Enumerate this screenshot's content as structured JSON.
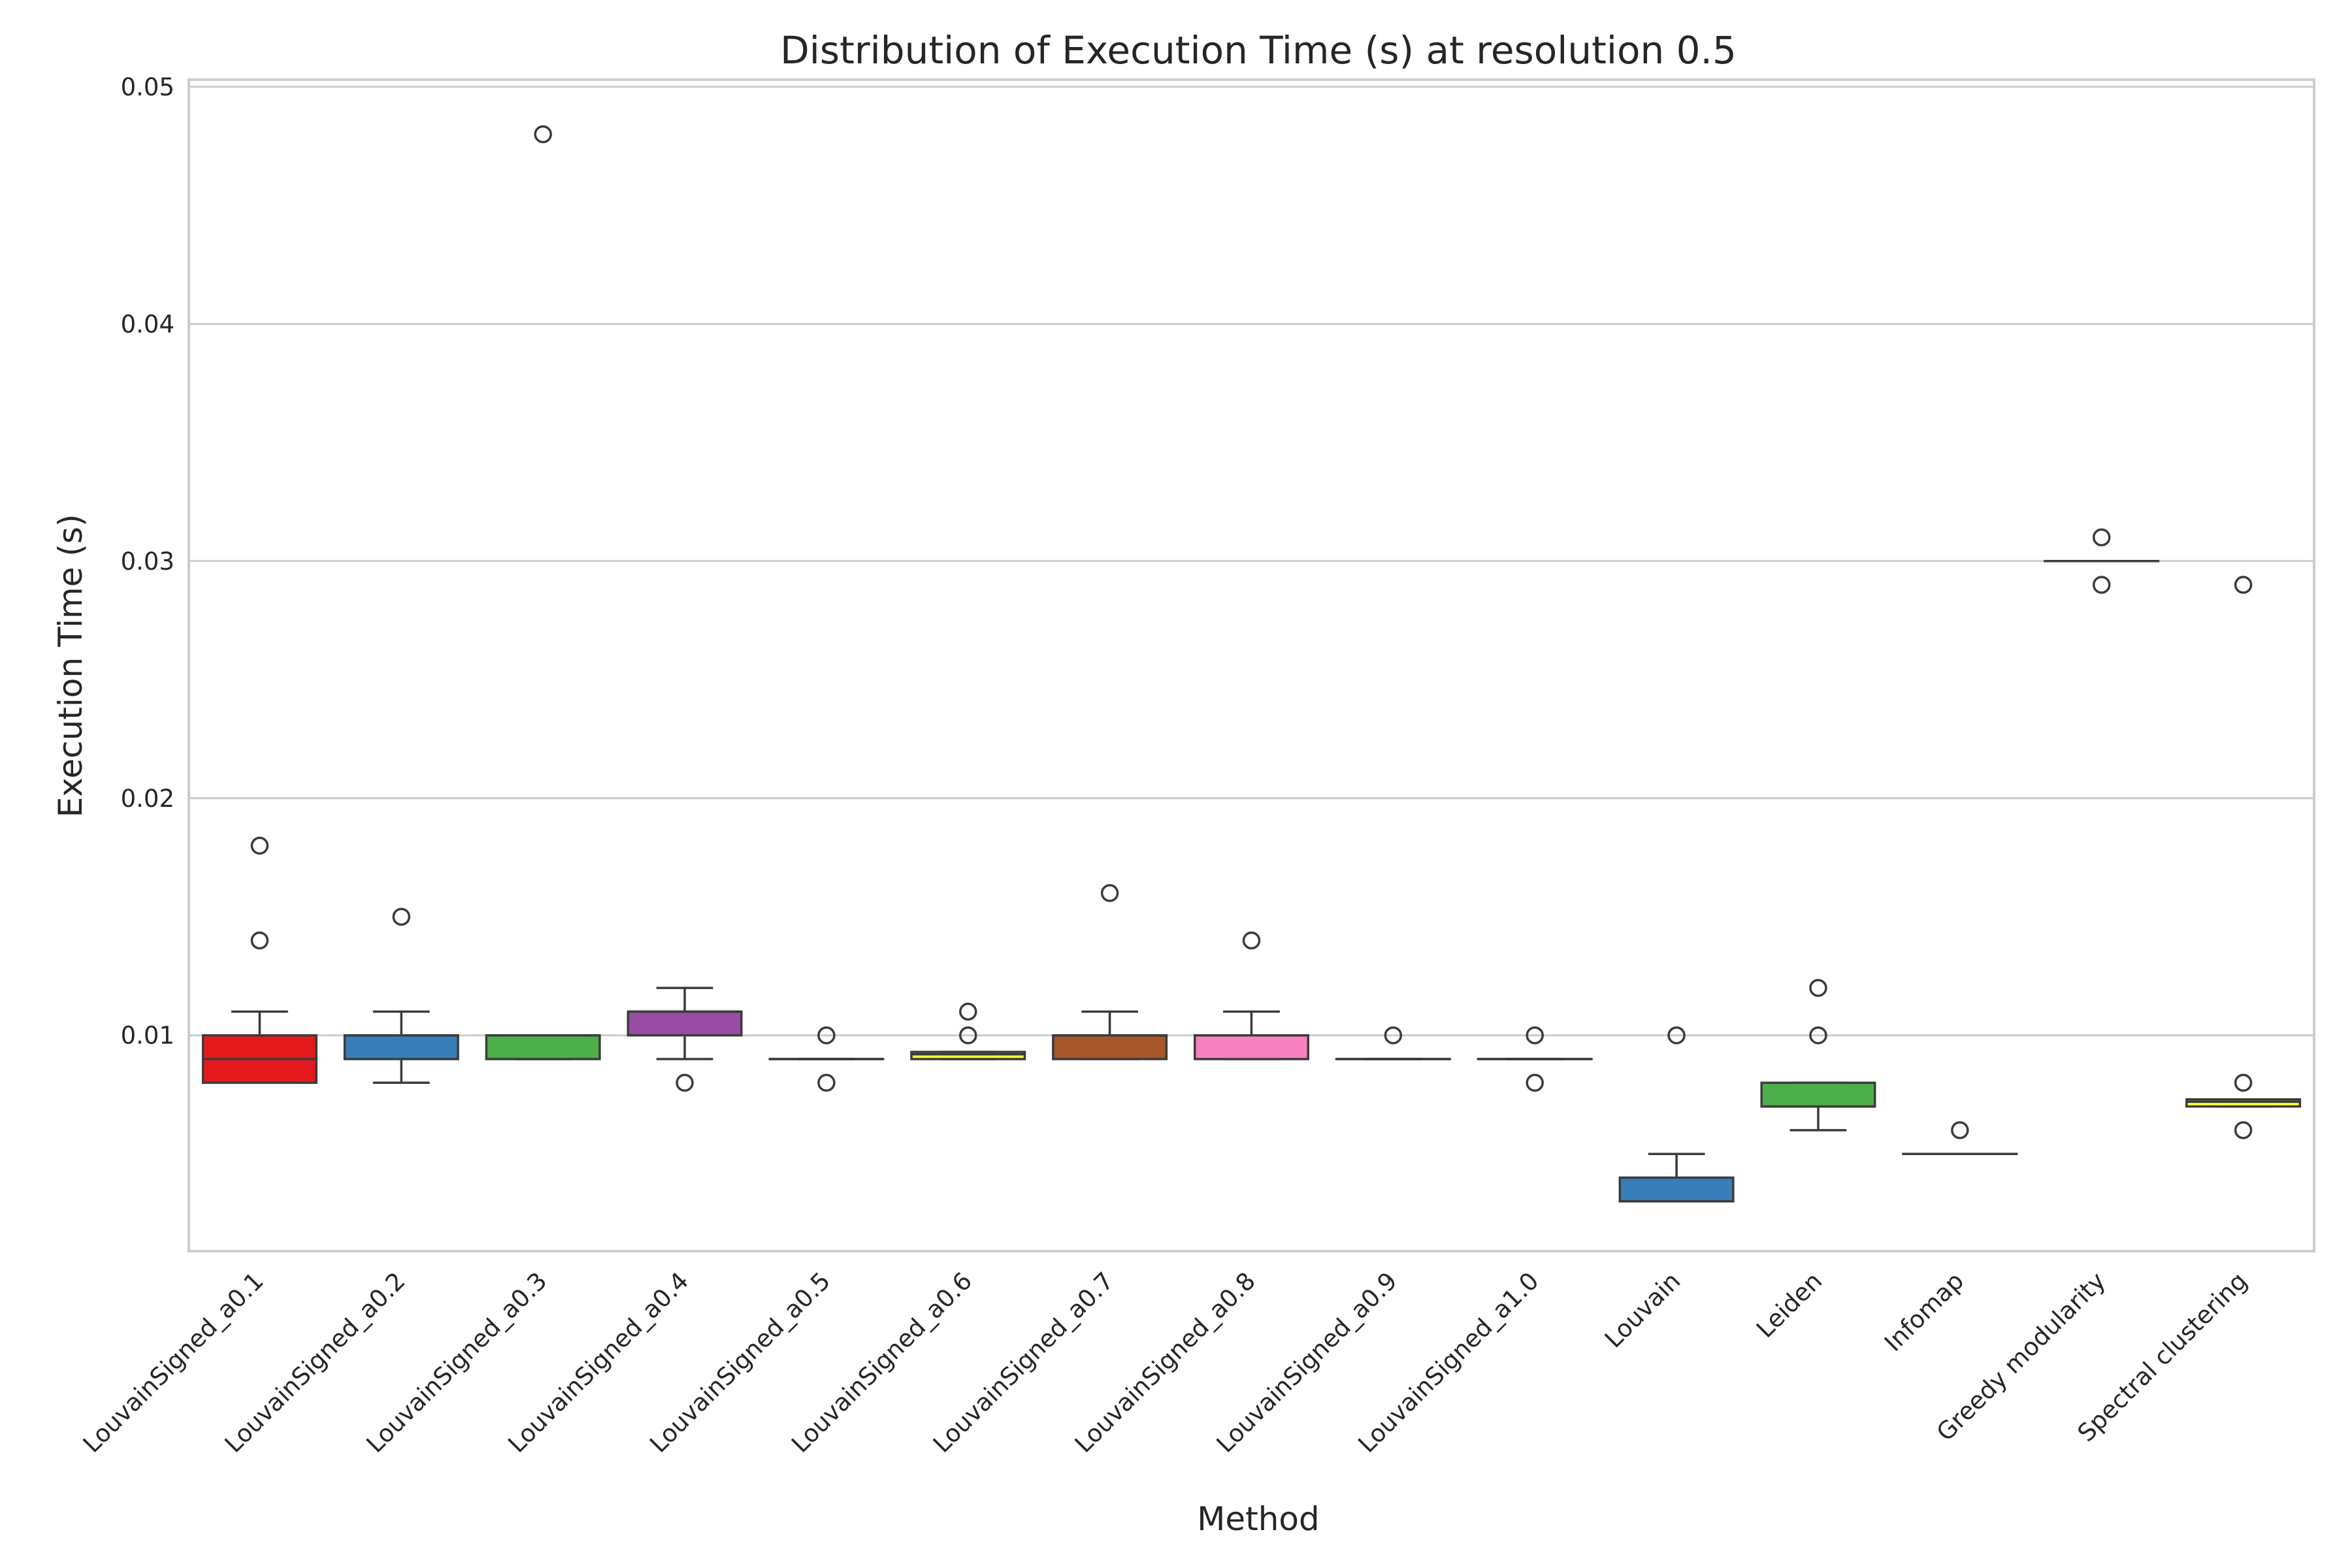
{
  "chart_data": {
    "type": "box",
    "title": "Distribution of Execution Time (s) at resolution 0.5",
    "xlabel": "Method",
    "ylabel": "Execution Time (s)",
    "ylim": [
      0.0009,
      0.0503
    ],
    "yticks": [
      0.01,
      0.02,
      0.03,
      0.04,
      0.05
    ],
    "grid": "horizontal",
    "categories": [
      "LouvainSigned_a0.1",
      "LouvainSigned_a0.2",
      "LouvainSigned_a0.3",
      "LouvainSigned_a0.4",
      "LouvainSigned_a0.5",
      "LouvainSigned_a0.6",
      "LouvainSigned_a0.7",
      "LouvainSigned_a0.8",
      "LouvainSigned_a0.9",
      "LouvainSigned_a1.0",
      "Louvain",
      "Leiden",
      "Infomap",
      "Greedy modularity",
      "Spectral clustering"
    ],
    "boxes": [
      {
        "color": "#e41a1c",
        "whislo": 0.008,
        "q1": 0.008,
        "med": 0.009,
        "q3": 0.01,
        "whishi": 0.011,
        "fliers": [
          0.014,
          0.018
        ]
      },
      {
        "color": "#377eb8",
        "whislo": 0.008,
        "q1": 0.009,
        "med": 0.01,
        "q3": 0.01,
        "whishi": 0.011,
        "fliers": [
          0.015
        ]
      },
      {
        "color": "#4daf4a",
        "whislo": 0.009,
        "q1": 0.009,
        "med": 0.01,
        "q3": 0.01,
        "whishi": 0.01,
        "fliers": [
          0.048
        ]
      },
      {
        "color": "#984ea3",
        "whislo": 0.009,
        "q1": 0.01,
        "med": 0.011,
        "q3": 0.011,
        "whishi": 0.012,
        "fliers": [
          0.008
        ]
      },
      {
        "color": "#ff7f00",
        "whislo": 0.009,
        "q1": 0.009,
        "med": 0.009,
        "q3": 0.009,
        "whishi": 0.009,
        "fliers": [
          0.008,
          0.01
        ]
      },
      {
        "color": "#ffff33",
        "whislo": 0.009,
        "q1": 0.009,
        "med": 0.0092,
        "q3": 0.0093,
        "whishi": 0.0093,
        "fliers": [
          0.01,
          0.011
        ]
      },
      {
        "color": "#a65628",
        "whislo": 0.009,
        "q1": 0.009,
        "med": 0.01,
        "q3": 0.01,
        "whishi": 0.011,
        "fliers": [
          0.016
        ]
      },
      {
        "color": "#f781bf",
        "whislo": 0.009,
        "q1": 0.009,
        "med": 0.01,
        "q3": 0.01,
        "whishi": 0.011,
        "fliers": [
          0.014
        ]
      },
      {
        "color": "#999999",
        "whislo": 0.009,
        "q1": 0.009,
        "med": 0.009,
        "q3": 0.009,
        "whishi": 0.009,
        "fliers": [
          0.01
        ]
      },
      {
        "color": "#e41a1c",
        "whislo": 0.009,
        "q1": 0.009,
        "med": 0.009,
        "q3": 0.009,
        "whishi": 0.009,
        "fliers": [
          0.008,
          0.01
        ]
      },
      {
        "color": "#377eb8",
        "whislo": 0.003,
        "q1": 0.003,
        "med": 0.003,
        "q3": 0.004,
        "whishi": 0.005,
        "fliers": [
          0.01
        ]
      },
      {
        "color": "#4daf4a",
        "whislo": 0.006,
        "q1": 0.007,
        "med": 0.007,
        "q3": 0.008,
        "whishi": 0.008,
        "fliers": [
          0.01,
          0.012
        ]
      },
      {
        "color": "#984ea3",
        "whislo": 0.005,
        "q1": 0.005,
        "med": 0.005,
        "q3": 0.005,
        "whishi": 0.005,
        "fliers": [
          0.006
        ]
      },
      {
        "color": "#ff7f00",
        "whislo": 0.03,
        "q1": 0.03,
        "med": 0.03,
        "q3": 0.03,
        "whishi": 0.03,
        "fliers": [
          0.029,
          0.031
        ]
      },
      {
        "color": "#ffff33",
        "whislo": 0.007,
        "q1": 0.007,
        "med": 0.0072,
        "q3": 0.0073,
        "whishi": 0.0073,
        "fliers": [
          0.006,
          0.008,
          0.029
        ]
      }
    ]
  }
}
